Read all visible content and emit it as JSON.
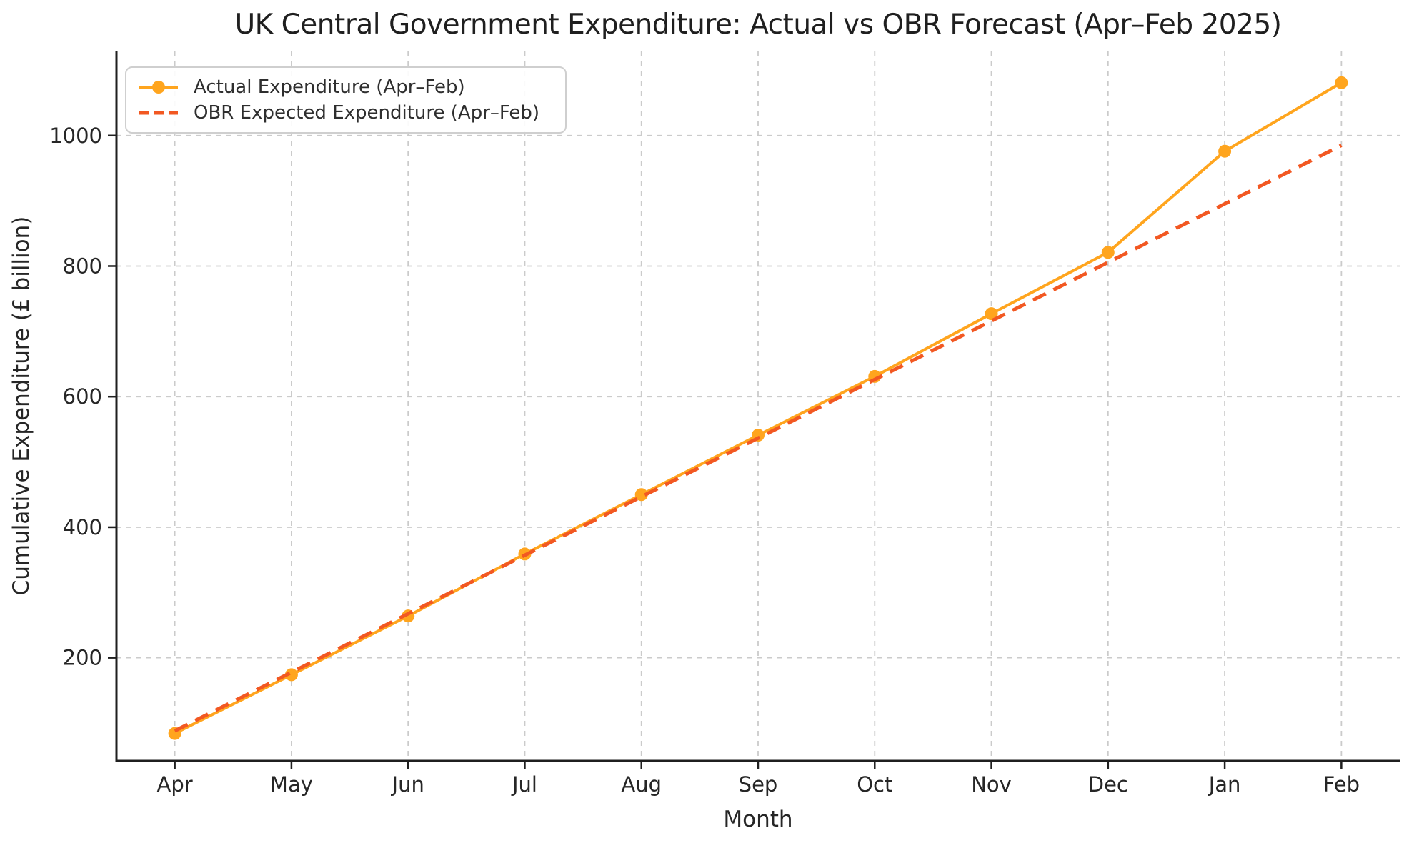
{
  "chart_data": {
    "type": "line",
    "title": "UK Central Government Expenditure: Actual vs OBR Forecast (Apr–Feb 2025)",
    "xlabel": "Month",
    "ylabel": "Cumulative Expenditure (£ billion)",
    "categories": [
      "Apr",
      "May",
      "Jun",
      "Jul",
      "Aug",
      "Sep",
      "Oct",
      "Nov",
      "Dec",
      "Jan",
      "Feb"
    ],
    "series": [
      {
        "name": "Actual Expenditure (Apr–Feb)",
        "values": [
          84,
          174,
          264,
          359,
          450,
          541,
          631,
          727,
          821,
          976,
          1081
        ],
        "color": "#FFA51E",
        "line_style": "solid",
        "marker": "circle"
      },
      {
        "name": "OBR Expected Expenditure (Apr–Feb)",
        "values": [
          88.0,
          177.7,
          267.4,
          357.1,
          446.8,
          536.5,
          626.2,
          715.9,
          805.6,
          895.3,
          985.0
        ],
        "color": "#F25822",
        "line_style": "dashed",
        "marker": "none"
      }
    ],
    "ylim": [
      42,
      1130
    ],
    "xlim_pad": 0.5,
    "yticks": [
      200,
      400,
      600,
      800,
      1000
    ],
    "grid": true,
    "grid_style": "dashed",
    "legend_position": "upper-left"
  },
  "style": {
    "background": "#FFFFFF",
    "grid_color": "#CBCBCB",
    "axis_color": "#1F1F1F",
    "text_color": "#262626",
    "actual_color": "#FFA51E",
    "obr_color": "#F25822"
  }
}
